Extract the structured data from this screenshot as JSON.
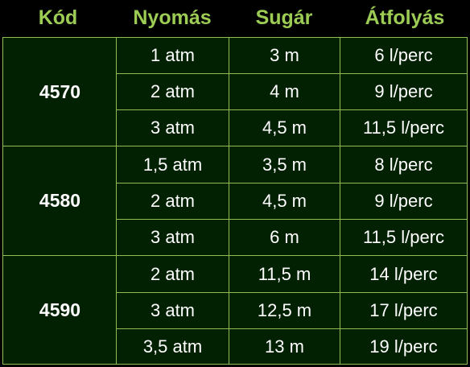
{
  "table": {
    "headers": {
      "code": "Kód",
      "pressure": "Nyomás",
      "radius": "Sugár",
      "flow": "Átfolyás"
    },
    "groups": [
      {
        "code": "4570",
        "rows": [
          {
            "pressure": "1 atm",
            "radius": "3 m",
            "flow": "6 l/perc"
          },
          {
            "pressure": "2 atm",
            "radius": "4 m",
            "flow": "9 l/perc"
          },
          {
            "pressure": "3 atm",
            "radius": "4,5 m",
            "flow": "11,5 l/perc"
          }
        ]
      },
      {
        "code": "4580",
        "rows": [
          {
            "pressure": "1,5 atm",
            "radius": "3,5 m",
            "flow": "8 l/perc"
          },
          {
            "pressure": "2 atm",
            "radius": "4,5 m",
            "flow": "9 l/perc"
          },
          {
            "pressure": "3 atm",
            "radius": "6 m",
            "flow": "11,5 l/perc"
          }
        ]
      },
      {
        "code": "4590",
        "rows": [
          {
            "pressure": "2 atm",
            "radius": "11,5 m",
            "flow": "14 l/perc"
          },
          {
            "pressure": "3 atm",
            "radius": "12,5 m",
            "flow": "17 l/perc"
          },
          {
            "pressure": "3,5 atm",
            "radius": "13 m",
            "flow": "19 l/perc"
          }
        ]
      }
    ]
  },
  "colors": {
    "background": "#000000",
    "table_background": "#022002",
    "header_text": "#9ccc54",
    "grid_lines": "#8fbf52",
    "cell_text": "#ffffff"
  }
}
